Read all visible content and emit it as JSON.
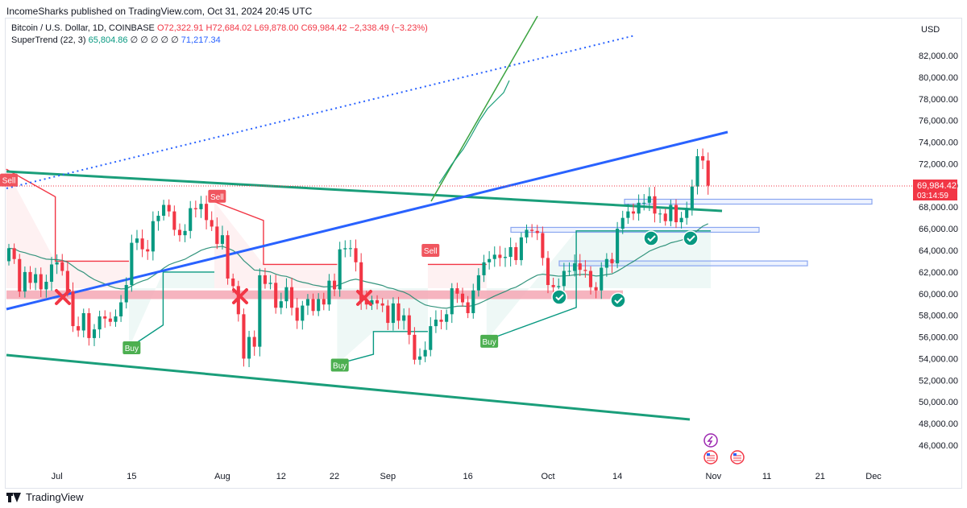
{
  "publisher_line": "IncomeSharks published on TradingView.com, Oct 31, 2024 20:45 UTC",
  "legend": {
    "symbol": "Bitcoin / U.S. Dollar, 1D, COINBASE",
    "o": "O72,322.91",
    "h": "H72,684.02",
    "l": "L69,878.00",
    "c": "C69,984.42",
    "chg": "−2,338.49 (−3.23%)",
    "indicator": "SuperTrend (22, 3)",
    "ind_v1": "65,804.86",
    "ind_zeros": "∅ ∅ ∅ ∅ ∅",
    "ind_v2": "71,217.34"
  },
  "footer": {
    "brand": "TradingView"
  },
  "colors": {
    "up": "#089981",
    "down": "#f23645",
    "trend": "#2962ff",
    "channel": "#089981",
    "zone": "#f4a7b4"
  },
  "chart_data": {
    "type": "candlestick",
    "currency": "USD",
    "yticks": [
      "46,000.00",
      "48,000.00",
      "50,000.00",
      "52,000.00",
      "54,000.00",
      "56,000.00",
      "58,000.00",
      "60,000.00",
      "62,000.00",
      "64,000.00",
      "66,000.00",
      "68,000.00",
      "70,000.00",
      "72,000.00",
      "74,000.00",
      "76,000.00",
      "78,000.00",
      "80,000.00",
      "82,000.00"
    ],
    "ylim": [
      44500,
      84500
    ],
    "xlim": [
      "2024-06-21",
      "2024-12-05"
    ],
    "xticks": [
      {
        "label": "Jul",
        "date": "2024-07-01"
      },
      {
        "label": "15",
        "date": "2024-07-15"
      },
      {
        "label": "Aug",
        "date": "2024-08-01"
      },
      {
        "label": "12",
        "date": "2024-08-12"
      },
      {
        "label": "22",
        "date": "2024-08-22"
      },
      {
        "label": "Sep",
        "date": "2024-09-01"
      },
      {
        "label": "16",
        "date": "2024-09-16"
      },
      {
        "label": "Oct",
        "date": "2024-10-01"
      },
      {
        "label": "14",
        "date": "2024-10-14"
      },
      {
        "label": "Nov",
        "date": "2024-11-01"
      },
      {
        "label": "11",
        "date": "2024-11-11"
      },
      {
        "label": "21",
        "date": "2024-11-21"
      },
      {
        "label": "Dec",
        "date": "2024-12-01"
      }
    ],
    "last_price": "69,984.42",
    "countdown": "03:14:59",
    "closes": [
      {
        "date": "2024-06-22",
        "close": 64200
      },
      {
        "date": "2024-06-23",
        "close": 63200
      },
      {
        "date": "2024-06-24",
        "close": 60200
      },
      {
        "date": "2024-06-25",
        "close": 62000
      },
      {
        "date": "2024-06-26",
        "close": 61000
      },
      {
        "date": "2024-06-27",
        "close": 61800
      },
      {
        "date": "2024-06-28",
        "close": 60400
      },
      {
        "date": "2024-06-29",
        "close": 61100
      },
      {
        "date": "2024-06-30",
        "close": 62700
      },
      {
        "date": "2024-07-01",
        "close": 62900
      },
      {
        "date": "2024-07-02",
        "close": 62100
      },
      {
        "date": "2024-07-03",
        "close": 60200
      },
      {
        "date": "2024-07-04",
        "close": 57000
      },
      {
        "date": "2024-07-05",
        "close": 56600
      },
      {
        "date": "2024-07-06",
        "close": 58200
      },
      {
        "date": "2024-07-07",
        "close": 55900
      },
      {
        "date": "2024-07-08",
        "close": 56700
      },
      {
        "date": "2024-07-09",
        "close": 57900
      },
      {
        "date": "2024-07-10",
        "close": 57700
      },
      {
        "date": "2024-07-11",
        "close": 57400
      },
      {
        "date": "2024-07-12",
        "close": 57900
      },
      {
        "date": "2024-07-13",
        "close": 59200
      },
      {
        "date": "2024-07-14",
        "close": 60800
      },
      {
        "date": "2024-07-15",
        "close": 64700
      },
      {
        "date": "2024-07-16",
        "close": 65100
      },
      {
        "date": "2024-07-17",
        "close": 64100
      },
      {
        "date": "2024-07-18",
        "close": 63900
      },
      {
        "date": "2024-07-19",
        "close": 66700
      },
      {
        "date": "2024-07-20",
        "close": 67200
      },
      {
        "date": "2024-07-21",
        "close": 68200
      },
      {
        "date": "2024-07-22",
        "close": 67600
      },
      {
        "date": "2024-07-23",
        "close": 65900
      },
      {
        "date": "2024-07-24",
        "close": 65400
      },
      {
        "date": "2024-07-25",
        "close": 65800
      },
      {
        "date": "2024-07-26",
        "close": 67900
      },
      {
        "date": "2024-07-27",
        "close": 67800
      },
      {
        "date": "2024-07-28",
        "close": 68300
      },
      {
        "date": "2024-07-29",
        "close": 66800
      },
      {
        "date": "2024-07-30",
        "close": 66200
      },
      {
        "date": "2024-07-31",
        "close": 64600
      },
      {
        "date": "2024-08-01",
        "close": 65400
      },
      {
        "date": "2024-08-02",
        "close": 61400
      },
      {
        "date": "2024-08-03",
        "close": 60700
      },
      {
        "date": "2024-08-04",
        "close": 58100
      },
      {
        "date": "2024-08-05",
        "close": 54000
      },
      {
        "date": "2024-08-06",
        "close": 56000
      },
      {
        "date": "2024-08-07",
        "close": 55100
      },
      {
        "date": "2024-08-08",
        "close": 61700
      },
      {
        "date": "2024-08-09",
        "close": 60900
      },
      {
        "date": "2024-08-10",
        "close": 61000
      },
      {
        "date": "2024-08-11",
        "close": 58700
      },
      {
        "date": "2024-08-12",
        "close": 59300
      },
      {
        "date": "2024-08-13",
        "close": 60600
      },
      {
        "date": "2024-08-14",
        "close": 58700
      },
      {
        "date": "2024-08-15",
        "close": 57500
      },
      {
        "date": "2024-08-16",
        "close": 58900
      },
      {
        "date": "2024-08-17",
        "close": 59500
      },
      {
        "date": "2024-08-18",
        "close": 58400
      },
      {
        "date": "2024-08-19",
        "close": 59500
      },
      {
        "date": "2024-08-20",
        "close": 59000
      },
      {
        "date": "2024-08-21",
        "close": 61200
      },
      {
        "date": "2024-08-22",
        "close": 60400
      },
      {
        "date": "2024-08-23",
        "close": 64100
      },
      {
        "date": "2024-08-24",
        "close": 64200
      },
      {
        "date": "2024-08-25",
        "close": 64200
      },
      {
        "date": "2024-08-26",
        "close": 62900
      },
      {
        "date": "2024-08-27",
        "close": 59400
      },
      {
        "date": "2024-08-28",
        "close": 59000
      },
      {
        "date": "2024-08-29",
        "close": 59400
      },
      {
        "date": "2024-08-30",
        "close": 59100
      },
      {
        "date": "2024-08-31",
        "close": 58900
      },
      {
        "date": "2024-09-01",
        "close": 57300
      },
      {
        "date": "2024-09-02",
        "close": 59100
      },
      {
        "date": "2024-09-03",
        "close": 57500
      },
      {
        "date": "2024-09-04",
        "close": 58000
      },
      {
        "date": "2024-09-05",
        "close": 56200
      },
      {
        "date": "2024-09-06",
        "close": 53900
      },
      {
        "date": "2024-09-07",
        "close": 54200
      },
      {
        "date": "2024-09-08",
        "close": 54800
      },
      {
        "date": "2024-09-09",
        "close": 57000
      },
      {
        "date": "2024-09-10",
        "close": 57600
      },
      {
        "date": "2024-09-11",
        "close": 57400
      },
      {
        "date": "2024-09-12",
        "close": 58100
      },
      {
        "date": "2024-09-13",
        "close": 60500
      },
      {
        "date": "2024-09-14",
        "close": 60000
      },
      {
        "date": "2024-09-15",
        "close": 59200
      },
      {
        "date": "2024-09-16",
        "close": 58200
      },
      {
        "date": "2024-09-17",
        "close": 60300
      },
      {
        "date": "2024-09-18",
        "close": 61700
      },
      {
        "date": "2024-09-19",
        "close": 62900
      },
      {
        "date": "2024-09-20",
        "close": 63200
      },
      {
        "date": "2024-09-21",
        "close": 63600
      },
      {
        "date": "2024-09-22",
        "close": 63300
      },
      {
        "date": "2024-09-23",
        "close": 63400
      },
      {
        "date": "2024-09-24",
        "close": 64300
      },
      {
        "date": "2024-09-25",
        "close": 63100
      },
      {
        "date": "2024-09-26",
        "close": 65200
      },
      {
        "date": "2024-09-27",
        "close": 65900
      },
      {
        "date": "2024-09-28",
        "close": 65800
      },
      {
        "date": "2024-09-29",
        "close": 65600
      },
      {
        "date": "2024-09-30",
        "close": 63300
      },
      {
        "date": "2024-10-01",
        "close": 60800
      },
      {
        "date": "2024-10-02",
        "close": 60600
      },
      {
        "date": "2024-10-03",
        "close": 60700
      },
      {
        "date": "2024-10-04",
        "close": 62100
      },
      {
        "date": "2024-10-05",
        "close": 62100
      },
      {
        "date": "2024-10-06",
        "close": 62800
      },
      {
        "date": "2024-10-07",
        "close": 62200
      },
      {
        "date": "2024-10-08",
        "close": 62100
      },
      {
        "date": "2024-10-09",
        "close": 60600
      },
      {
        "date": "2024-10-10",
        "close": 60300
      },
      {
        "date": "2024-10-11",
        "close": 62400
      },
      {
        "date": "2024-10-12",
        "close": 63200
      },
      {
        "date": "2024-10-13",
        "close": 62800
      },
      {
        "date": "2024-10-14",
        "close": 66000
      },
      {
        "date": "2024-10-15",
        "close": 67000
      },
      {
        "date": "2024-10-16",
        "close": 67600
      },
      {
        "date": "2024-10-17",
        "close": 67400
      },
      {
        "date": "2024-10-18",
        "close": 68400
      },
      {
        "date": "2024-10-19",
        "close": 68400
      },
      {
        "date": "2024-10-20",
        "close": 69000
      },
      {
        "date": "2024-10-21",
        "close": 67400
      },
      {
        "date": "2024-10-22",
        "close": 67400
      },
      {
        "date": "2024-10-23",
        "close": 66700
      },
      {
        "date": "2024-10-24",
        "close": 68200
      },
      {
        "date": "2024-10-25",
        "close": 66600
      },
      {
        "date": "2024-10-26",
        "close": 67000
      },
      {
        "date": "2024-10-27",
        "close": 67900
      },
      {
        "date": "2024-10-28",
        "close": 69900
      },
      {
        "date": "2024-10-29",
        "close": 72700
      },
      {
        "date": "2024-10-30",
        "close": 72300
      },
      {
        "date": "2024-10-31",
        "close": 69984
      }
    ],
    "signals": [
      {
        "text": "Sell",
        "date": "2024-06-22",
        "price": 70500,
        "type": "sell"
      },
      {
        "text": "Buy",
        "date": "2024-07-15",
        "price": 55000,
        "type": "buy"
      },
      {
        "text": "Sell",
        "date": "2024-07-31",
        "price": 69000,
        "type": "sell"
      },
      {
        "text": "Buy",
        "date": "2024-08-23",
        "price": 53400,
        "type": "buy"
      },
      {
        "text": "Sell",
        "date": "2024-09-09",
        "price": 64000,
        "type": "sell"
      },
      {
        "text": "Buy",
        "date": "2024-09-20",
        "price": 55600,
        "type": "buy"
      }
    ]
  }
}
